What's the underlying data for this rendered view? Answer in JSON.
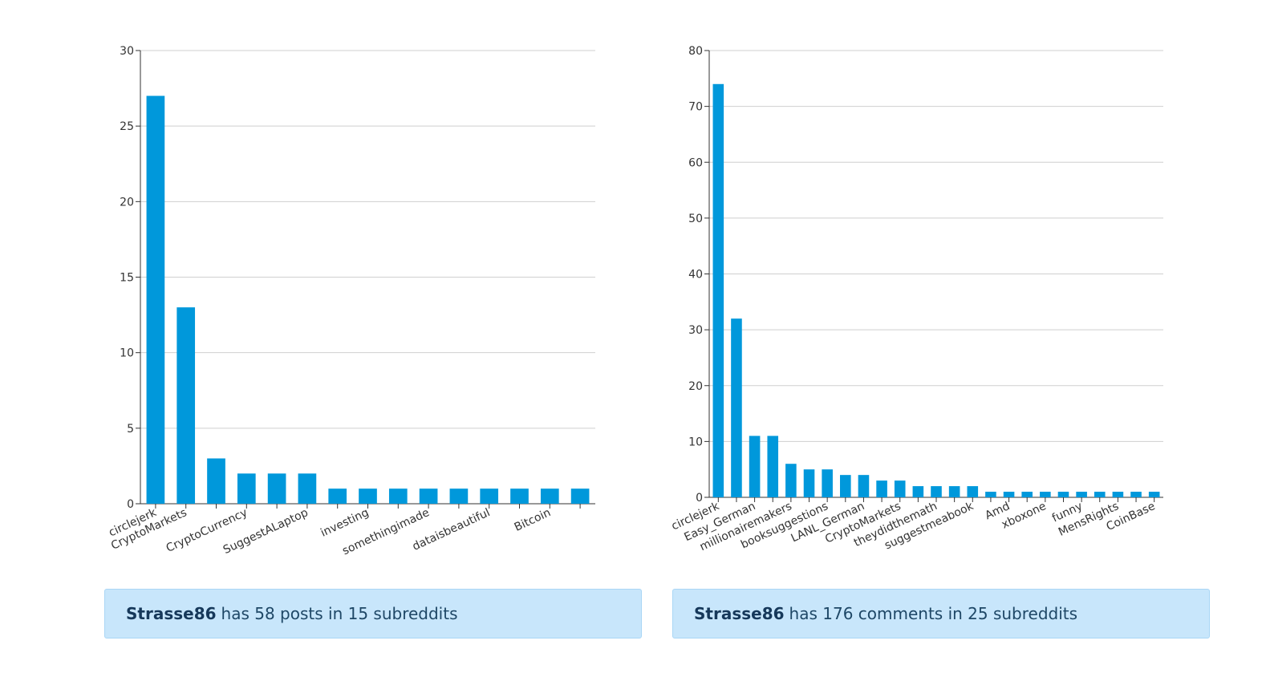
{
  "chart_data": [
    {
      "type": "bar",
      "categories": [
        "circlejerk",
        "CryptoMarkets",
        "",
        "CryptoCurrency",
        "",
        "SuggestALaptop",
        "",
        "investing",
        "",
        "somethingimade",
        "",
        "dataisbeautiful",
        "",
        "Bitcoin",
        ""
      ],
      "values": [
        27,
        13,
        3,
        2,
        2,
        2,
        1,
        1,
        1,
        1,
        1,
        1,
        1,
        1,
        1
      ],
      "ylim": [
        0,
        30
      ],
      "yticks": [
        0,
        5,
        10,
        15,
        20,
        25,
        30
      ],
      "xlabel": "",
      "ylabel": "",
      "color": "#0098db",
      "grid": true
    },
    {
      "type": "bar",
      "categories": [
        "circlejerk",
        "",
        "Easy_German",
        "",
        "millionairemakers",
        "",
        "booksuggestions",
        "",
        "LANL_German",
        "",
        "CryptoMarkets",
        "",
        "theydidthemath",
        "",
        "suggestmeabook",
        "",
        "Amd",
        "",
        "xboxone",
        "",
        "funny",
        "",
        "MensRights",
        "",
        "CoinBase"
      ],
      "values": [
        74,
        32,
        11,
        11,
        6,
        5,
        5,
        4,
        4,
        3,
        3,
        2,
        2,
        2,
        2,
        1,
        1,
        1,
        1,
        1,
        1,
        1,
        1,
        1,
        1
      ],
      "ylim": [
        0,
        80
      ],
      "yticks": [
        0,
        10,
        20,
        30,
        40,
        50,
        60,
        70,
        80
      ],
      "xlabel": "",
      "ylabel": "",
      "color": "#0098db",
      "grid": true
    }
  ],
  "summaries": [
    {
      "user": "Strasse86",
      "text": "has 58 posts in 15 subreddits"
    },
    {
      "user": "Strasse86",
      "text": "has 176 comments in 25 subreddits"
    }
  ]
}
